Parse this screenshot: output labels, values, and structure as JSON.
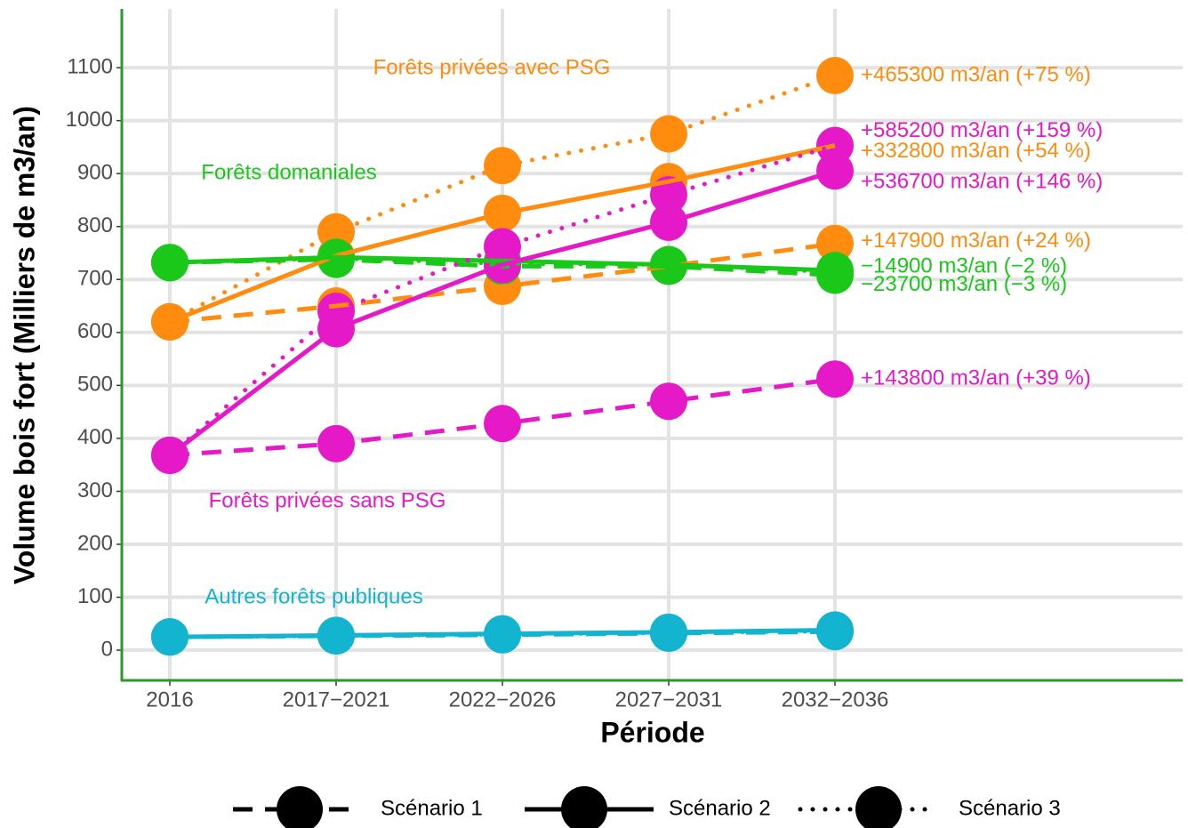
{
  "chart_data": {
    "type": "line",
    "x_label": "Période",
    "y_label": "Volume bois fort (Milliers de m3/an)",
    "categories": [
      "2016",
      "2017−2021",
      "2022−2026",
      "2027−2031",
      "2032−2036"
    ],
    "ylim": [
      -57,
      1211
    ],
    "yticks": [
      0,
      100,
      200,
      300,
      400,
      500,
      600,
      700,
      800,
      900,
      1000,
      1100
    ],
    "grid": true,
    "groups": [
      {
        "label": "Forêts privées avec PSG",
        "color": "#ff8c0f",
        "series": [
          {
            "name": "Scénario 1",
            "linestyle": "dashed",
            "values": [
              620,
              650,
              687,
              725,
              768
            ],
            "end_label": "+147900 m3/an (+24 %)"
          },
          {
            "name": "Scénario 2",
            "linestyle": "solid",
            "values": [
              620,
              745,
              825,
              885,
              953
            ],
            "end_label": "+332800 m3/an (+54 %)"
          },
          {
            "name": "Scénario 3",
            "linestyle": "dotted",
            "values": [
              620,
              790,
              915,
              975,
              1085
            ],
            "end_label": "+465300 m3/an (+75 %)"
          }
        ]
      },
      {
        "label": "Forêts domaniales",
        "color": "#19c819",
        "series": [
          {
            "name": "Scénario 1",
            "linestyle": "dashed",
            "values": [
              732,
              738,
              725,
              725,
              708
            ],
            "end_label": "−23700 m3/an (−3 %)"
          },
          {
            "name": "Scénario 2",
            "linestyle": "solid",
            "values": [
              732,
              742,
              735,
              728,
              717
            ],
            "end_label": "−14900 m3/an (−2 %)"
          },
          {
            "name": "Scénario 3",
            "linestyle": "dotted",
            "values": [
              732,
              740,
              730,
              728,
              714
            ]
          }
        ]
      },
      {
        "label": "Forêts privées sans PSG",
        "color": "#e619c8",
        "series": [
          {
            "name": "Scénario 1",
            "linestyle": "dashed",
            "values": [
              368,
              390,
              428,
              470,
              512
            ],
            "end_label": "+143800 m3/an (+39 %)"
          },
          {
            "name": "Scénario 2",
            "linestyle": "solid",
            "values": [
              368,
              607,
              728,
              808,
              905
            ],
            "end_label": "+536700 m3/an (+146 %)"
          },
          {
            "name": "Scénario 3",
            "linestyle": "dotted",
            "values": [
              368,
              640,
              762,
              860,
              953
            ],
            "end_label": "+585200 m3/an (+159 %)"
          }
        ]
      },
      {
        "label": "Autres forêts publiques",
        "color": "#12b4cf",
        "series": [
          {
            "name": "Scénario 1",
            "linestyle": "dashed",
            "values": [
              25,
              27,
              29,
              32,
              35
            ]
          },
          {
            "name": "Scénario 2",
            "linestyle": "solid",
            "values": [
              25,
              28,
              31,
              34,
              38
            ]
          },
          {
            "name": "Scénario 3",
            "linestyle": "dotted",
            "values": [
              25,
              27,
              30,
              33,
              36
            ]
          }
        ]
      }
    ]
  }
}
